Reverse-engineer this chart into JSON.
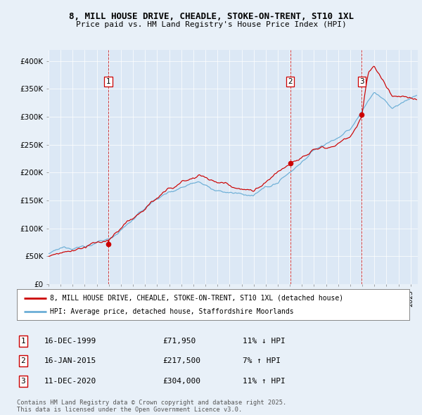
{
  "title_line1": "8, MILL HOUSE DRIVE, CHEADLE, STOKE-ON-TRENT, ST10 1XL",
  "title_line2": "Price paid vs. HM Land Registry's House Price Index (HPI)",
  "background_color": "#e8f0f8",
  "plot_bg_color": "#dce8f5",
  "legend_line1": "8, MILL HOUSE DRIVE, CHEADLE, STOKE-ON-TRENT, ST10 1XL (detached house)",
  "legend_line2": "HPI: Average price, detached house, Staffordshire Moorlands",
  "sale1_date": "16-DEC-1999",
  "sale1_price": "£71,950",
  "sale1_hpi": "11% ↓ HPI",
  "sale2_date": "16-JAN-2015",
  "sale2_price": "£217,500",
  "sale2_hpi": "7% ↑ HPI",
  "sale3_date": "11-DEC-2020",
  "sale3_price": "£304,000",
  "sale3_hpi": "11% ↑ HPI",
  "footer": "Contains HM Land Registry data © Crown copyright and database right 2025.\nThis data is licensed under the Open Government Licence v3.0.",
  "hpi_color": "#6baed6",
  "price_color": "#cc0000",
  "sale_marker_color": "#cc0000",
  "ylim_min": 0,
  "ylim_max": 420000,
  "ytick_values": [
    0,
    50000,
    100000,
    150000,
    200000,
    250000,
    300000,
    350000,
    400000
  ],
  "ytick_labels": [
    "£0",
    "£50K",
    "£100K",
    "£150K",
    "£200K",
    "£250K",
    "£300K",
    "£350K",
    "£400K"
  ],
  "sale1_year": 1999.96,
  "sale1_val": 71950,
  "sale2_year": 2015.04,
  "sale2_val": 217500,
  "sale3_year": 2020.95,
  "sale3_val": 304000
}
